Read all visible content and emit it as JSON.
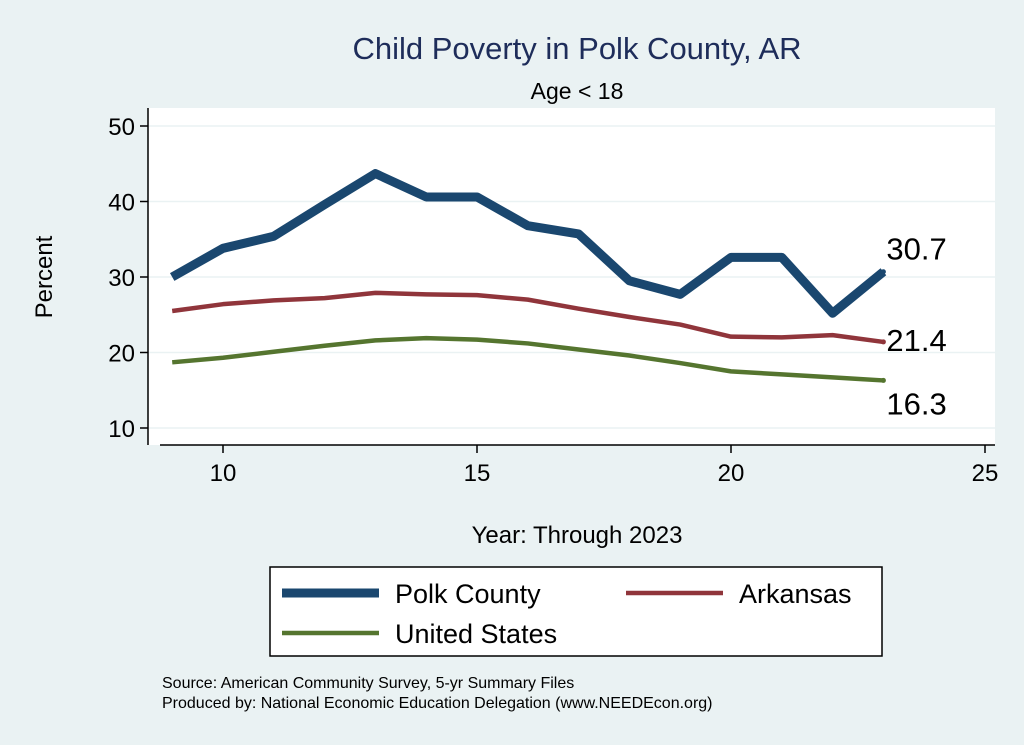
{
  "chart_data": {
    "type": "line",
    "title": "Child Poverty in Polk County, AR",
    "subtitle": "Age < 18",
    "xlabel": "Year: Through 2023",
    "ylabel": "Percent",
    "xlim": [
      8.8,
      25.2
    ],
    "ylim": [
      8,
      52
    ],
    "xticks": [
      10,
      15,
      20,
      25
    ],
    "yticks": [
      10,
      20,
      30,
      40,
      50
    ],
    "grid": true,
    "legend_position": "bottom",
    "x": [
      9,
      10,
      11,
      12,
      13,
      14,
      15,
      16,
      17,
      18,
      19,
      20,
      21,
      22,
      23
    ],
    "series": [
      {
        "name": "Polk County",
        "color": "#1a476f",
        "values": [
          30.0,
          33.8,
          35.4,
          39.6,
          43.7,
          40.6,
          40.6,
          36.8,
          35.7,
          29.5,
          27.7,
          32.6,
          32.6,
          25.2,
          30.7
        ],
        "end_label": "30.7"
      },
      {
        "name": "Arkansas",
        "color": "#90353b",
        "values": [
          25.5,
          26.4,
          26.9,
          27.2,
          27.9,
          27.7,
          27.6,
          27.0,
          25.8,
          24.7,
          23.7,
          22.1,
          22.0,
          22.3,
          21.4
        ],
        "end_label": "21.4"
      },
      {
        "name": "United States",
        "color": "#55752f",
        "values": [
          18.7,
          19.3,
          20.1,
          20.9,
          21.6,
          21.9,
          21.7,
          21.2,
          20.4,
          19.6,
          18.6,
          17.5,
          17.1,
          16.7,
          16.3
        ],
        "end_label": "16.3"
      }
    ]
  },
  "notes": [
    "Source: American Community Survey, 5-yr Summary Files",
    "Produced by: National Economic Education Delegation (www.NEEDEcon.org)"
  ]
}
